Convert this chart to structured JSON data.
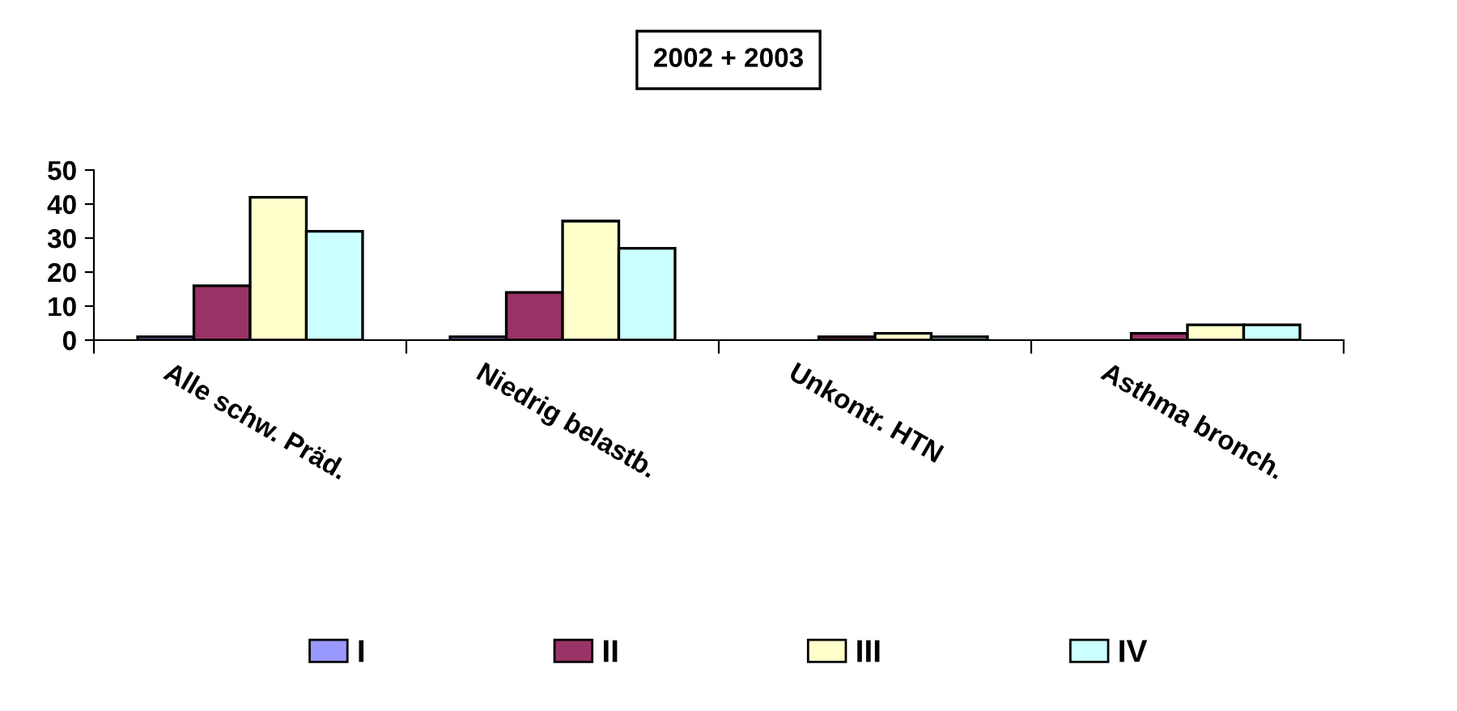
{
  "chart_data": {
    "type": "bar",
    "title": "2002 + 2003",
    "categories": [
      "Alle schw. Präd.",
      "Niedrig belastb.",
      "Unkontr. HTN",
      "Asthma bronch."
    ],
    "series": [
      {
        "name": "I",
        "color": "#9999ff",
        "values": [
          1,
          1,
          null,
          null
        ]
      },
      {
        "name": "II",
        "color": "#993366",
        "values": [
          16,
          14,
          1,
          2
        ]
      },
      {
        "name": "III",
        "color": "#ffffcc",
        "values": [
          42,
          35,
          2,
          4.5
        ]
      },
      {
        "name": "IV",
        "color": "#ccffff",
        "values": [
          32,
          27,
          1,
          4.5
        ]
      }
    ],
    "ylim": [
      0,
      50
    ],
    "yticks": [
      0,
      10,
      20,
      30,
      40,
      50
    ],
    "grid": false,
    "legend": "bottom"
  }
}
